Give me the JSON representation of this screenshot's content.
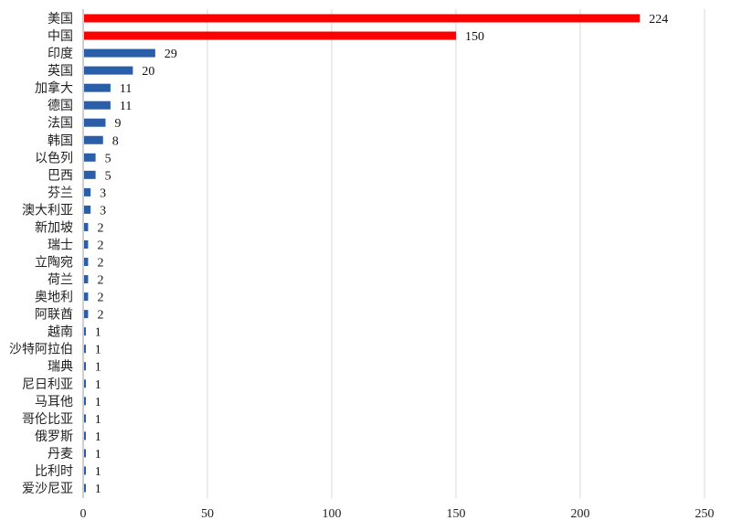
{
  "chart_data": {
    "type": "bar",
    "orientation": "horizontal",
    "categories": [
      "美国",
      "中国",
      "印度",
      "英国",
      "加拿大",
      "德国",
      "法国",
      "韩国",
      "以色列",
      "巴西",
      "芬兰",
      "澳大利亚",
      "新加坡",
      "瑞士",
      "立陶宛",
      "荷兰",
      "奥地利",
      "阿联酋",
      "越南",
      "沙特阿拉伯",
      "瑞典",
      "尼日利亚",
      "马耳他",
      "哥伦比亚",
      "俄罗斯",
      "丹麦",
      "比利时",
      "爱沙尼亚"
    ],
    "values": [
      224,
      150,
      29,
      20,
      11,
      11,
      9,
      8,
      5,
      5,
      3,
      3,
      2,
      2,
      2,
      2,
      2,
      2,
      1,
      1,
      1,
      1,
      1,
      1,
      1,
      1,
      1,
      1
    ],
    "highlight_colors": {
      "top": "#ff0000",
      "default": "#2a5ea8"
    },
    "highlighted_count": 2,
    "xlim": [
      0,
      250
    ],
    "xticks": [
      0,
      50,
      100,
      150,
      200,
      250
    ],
    "grid": "vertical",
    "data_labels": true,
    "title": "",
    "xlabel": "",
    "ylabel": ""
  }
}
